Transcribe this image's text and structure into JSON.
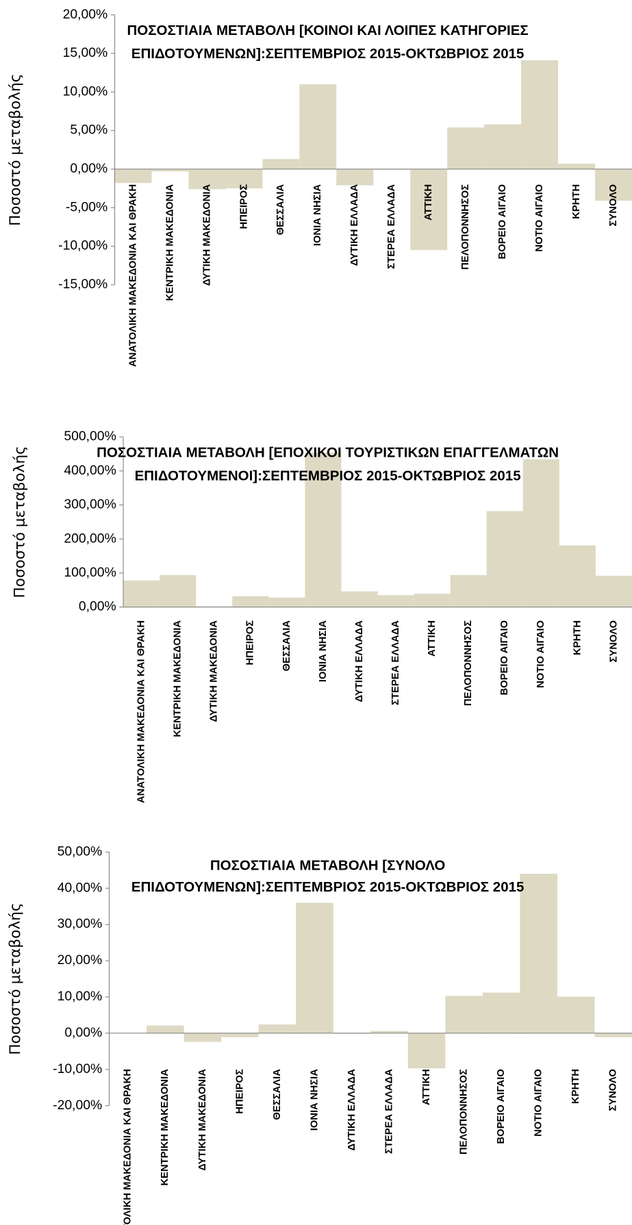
{
  "chart_data": [
    {
      "type": "bar",
      "title": [
        "ΠΟΣΟΣΤΙΑΙΑ ΜΕΤΑΒΟΛΗ [ΚΟΙΝΟΙ ΚΑΙ ΛΟΙΠΕΣ ΚΑΤΗΓΟΡΙΕΣ",
        "ΕΠΙΔΟΤΟΥΜΕΝΩΝ]:ΣΕΠΤΕΜΒΡΙΟΣ 2015-ΟΚΤΩΒΡΙΟΣ 2015"
      ],
      "y_label": "Ποσοστό μεταβολής",
      "categories": [
        "ΑΝΑΤΟΛΙΚΗ ΜΑΚΕΔΟΝΙΑ ΚΑΙ ΘΡΑΚΗ",
        "ΚΕΝΤΡΙΚΗ ΜΑΚΕΔΟΝΙΑ",
        "ΔΥΤΙΚΗ ΜΑΚΕΔΟΝΙΑ",
        "ΗΠΕΙΡΟΣ",
        "ΘΕΣΣΑΛΙΑ",
        "ΙΟΝΙΑ ΝΗΣΙΑ",
        "ΔΥΤΙΚΗ ΕΛΛΑΔΑ",
        "ΣΤΕΡΕΑ ΕΛΛΑΔΑ",
        "ΑΤΤΙΚΗ",
        "ΠΕΛΟΠΟΝΝΗΣΟΣ",
        "ΒΟΡΕΙΟ ΑΙΓΑΙΟ",
        "ΝΟΤΙΟ ΑΙΓΑΙΟ",
        "ΚΡΗΤΗ",
        "ΣΥΝΟΛΟ"
      ],
      "values": [
        -1.8,
        -0.3,
        -2.6,
        -2.5,
        1.3,
        11.0,
        -2.1,
        -0.1,
        -10.5,
        5.4,
        5.8,
        14.1,
        0.7,
        -4.1
      ],
      "color": "#ddd9c3",
      "ylim": [
        -15,
        20
      ],
      "yticks": [
        {
          "value": -15,
          "label": "-15,00%"
        },
        {
          "value": -10,
          "label": "-10,00%"
        },
        {
          "value": -5,
          "label": "-5,00%"
        },
        {
          "value": 0,
          "label": "0,00%"
        },
        {
          "value": 5,
          "label": "5,00%"
        },
        {
          "value": 10,
          "label": "10,00%"
        },
        {
          "value": 15,
          "label": "15,00%"
        },
        {
          "value": 20,
          "label": "20,00%"
        }
      ]
    },
    {
      "type": "bar",
      "title": [
        "ΠΟΣΟΣΤΙΑΙΑ ΜΕΤΑΒΟΛΗ [ΕΠΟΧΙΚΟΙ ΤΟΥΡΙΣΤΙΚΩΝ ΕΠΑΓΓΕΛΜΑΤΩΝ",
        "ΕΠΙΔΟΤΟΥΜΕΝΟΙ]:ΣΕΠΤΕΜΒΡΙΟΣ 2015-ΟΚΤΩΒΡΙΟΣ 2015"
      ],
      "y_label": "Ποσοστό μεταβολής",
      "categories": [
        "ΑΝΑΤΟΛΙΚΗ ΜΑΚΕΔΟΝΙΑ ΚΑΙ ΘΡΑΚΗ",
        "ΚΕΝΤΡΙΚΗ ΜΑΚΕΔΟΝΙΑ",
        "ΔΥΤΙΚΗ ΜΑΚΕΔΟΝΙΑ",
        "ΗΠΕΙΡΟΣ",
        "ΘΕΣΣΑΛΙΑ",
        "ΙΟΝΙΑ ΝΗΣΙΑ",
        "ΔΥΤΙΚΗ ΕΛΛΑΔΑ",
        "ΣΤΕΡΕΑ ΕΛΛΑΔΑ",
        "ΑΤΤΙΚΗ",
        "ΠΕΛΟΠΟΝΝΗΣΟΣ",
        "ΒΟΡΕΙΟ ΑΙΓΑΙΟ",
        "ΝΟΤΙΟ ΑΙΓΑΙΟ",
        "ΚΡΗΤΗ",
        "ΣΥΝΟΛΟ"
      ],
      "values": [
        78,
        94,
        2,
        32,
        28,
        454,
        46,
        35,
        39,
        94,
        282,
        434,
        181,
        92
      ],
      "color": "#ddd9c3",
      "ylim": [
        0,
        500
      ],
      "yticks": [
        {
          "value": 0,
          "label": "0,00%"
        },
        {
          "value": 100,
          "label": "100,00%"
        },
        {
          "value": 200,
          "label": "200,00%"
        },
        {
          "value": 300,
          "label": "300,00%"
        },
        {
          "value": 400,
          "label": "400,00%"
        },
        {
          "value": 500,
          "label": "500,00%"
        }
      ]
    },
    {
      "type": "bar",
      "title": [
        "ΠΟΣΟΣΤΙΑΙΑ ΜΕΤΑΒΟΛΗ [ΣΥΝΟΛΟ",
        "ΕΠΙΔΟΤΟΥΜΕΝΩΝ]:ΣΕΠΤΕΜΒΡΙΟΣ 2015-ΟΚΤΩΒΡΙΟΣ 2015"
      ],
      "y_label": "Ποσοστό μεταβολής",
      "categories": [
        "ΑΝΑΤΟΛΙΚΗ ΜΑΚΕΔΟΝΙΑ ΚΑΙ ΘΡΑΚΗ",
        "ΚΕΝΤΡΙΚΗ ΜΑΚΕΔΟΝΙΑ",
        "ΔΥΤΙΚΗ ΜΑΚΕΔΟΝΙΑ",
        "ΗΠΕΙΡΟΣ",
        "ΘΕΣΣΑΛΙΑ",
        "ΙΟΝΙΑ ΝΗΣΙΑ",
        "ΔΥΤΙΚΗ ΕΛΛΑΔΑ",
        "ΣΤΕΡΕΑ ΕΛΛΑΔΑ",
        "ΑΤΤΙΚΗ",
        "ΠΕΛΟΠΟΝΝΗΣΟΣ",
        "ΒΟΡΕΙΟ ΑΙΓΑΙΟ",
        "ΝΟΤΙΟ ΑΙΓΑΙΟ",
        "ΚΡΗΤΗ",
        "ΣΥΝΟΛΟ"
      ],
      "values": [
        0,
        2.1,
        -2.4,
        -1.1,
        2.4,
        36.0,
        -0.2,
        0.6,
        -9.7,
        10.3,
        11.2,
        44.0,
        10.1,
        -1.1
      ],
      "color": "#ddd9c3",
      "ylim": [
        -20,
        50
      ],
      "yticks": [
        {
          "value": -20,
          "label": "-20,00%"
        },
        {
          "value": -10,
          "label": "-10,00%"
        },
        {
          "value": 0,
          "label": "0,00%"
        },
        {
          "value": 10,
          "label": "10,00%"
        },
        {
          "value": 20,
          "label": "20,00%"
        },
        {
          "value": 30,
          "label": "30,00%"
        },
        {
          "value": 40,
          "label": "40,00%"
        },
        {
          "value": 50,
          "label": "50,00%"
        }
      ]
    }
  ]
}
